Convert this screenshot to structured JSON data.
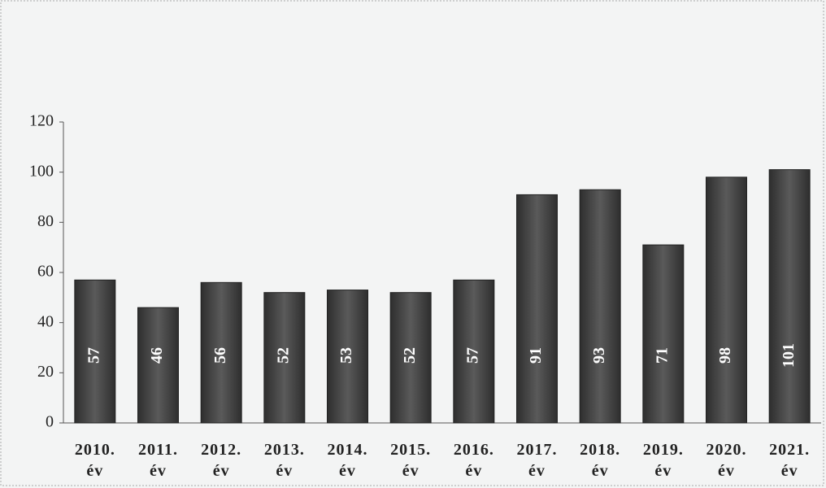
{
  "chart_data": {
    "type": "bar",
    "categories": [
      "2010. év",
      "2011. év",
      "2012. év",
      "2013. év",
      "2014. év",
      "2015. év",
      "2016. év",
      "2017. év",
      "2018. év",
      "2019. év",
      "2020. év",
      "2021. év"
    ],
    "values": [
      57,
      46,
      56,
      52,
      53,
      52,
      57,
      91,
      93,
      71,
      98,
      101
    ],
    "color": "#4a4a4a",
    "ylim": [
      0,
      120
    ],
    "yticks": [
      0,
      20,
      40,
      60,
      80,
      100,
      120
    ],
    "grid": false
  }
}
